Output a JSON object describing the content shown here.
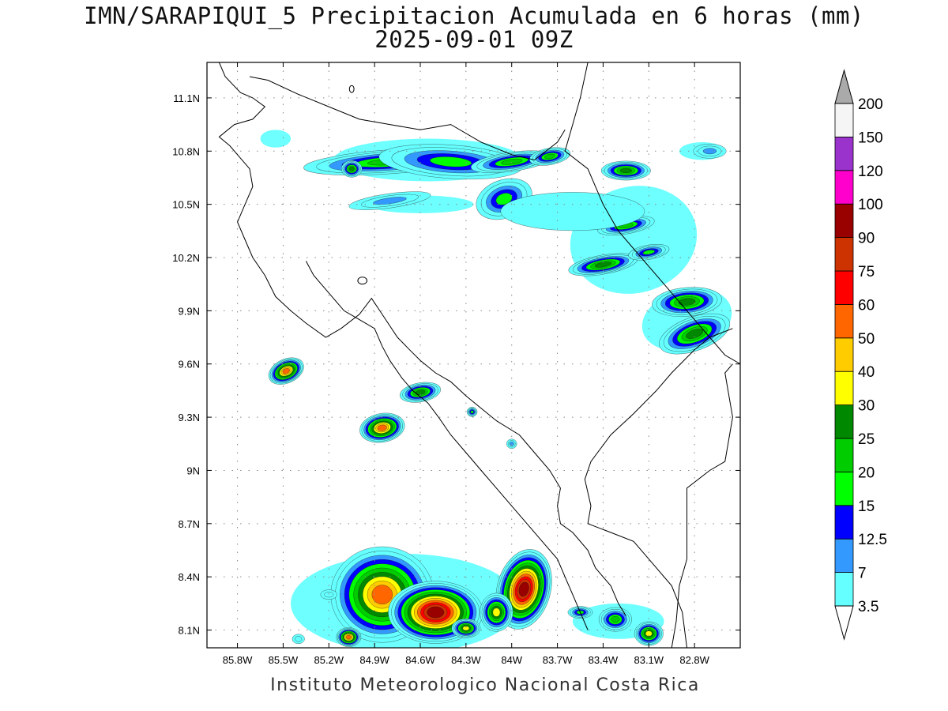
{
  "title": "IMN/SARAPIQUI_5 Precipitacion Acumulada en 6 horas (mm)",
  "subtitle": "2025-09-01 09Z",
  "footer": "Instituto Meteorologico Nacional Costa Rica",
  "map": {
    "lon_range": [
      -86.0,
      -82.5
    ],
    "lat_range": [
      8.0,
      11.3
    ],
    "lat_ticks": [
      {
        "value": 11.1,
        "label": "11.1N"
      },
      {
        "value": 10.8,
        "label": "10.8N"
      },
      {
        "value": 10.5,
        "label": "10.5N"
      },
      {
        "value": 10.2,
        "label": "10.2N"
      },
      {
        "value": 9.9,
        "label": "9.9N"
      },
      {
        "value": 9.6,
        "label": "9.6N"
      },
      {
        "value": 9.3,
        "label": "9.3N"
      },
      {
        "value": 9.0,
        "label": "9N"
      },
      {
        "value": 8.7,
        "label": "8.7N"
      },
      {
        "value": 8.4,
        "label": "8.4N"
      },
      {
        "value": 8.1,
        "label": "8.1N"
      }
    ],
    "lon_ticks": [
      {
        "value": -85.8,
        "label": "85.8W"
      },
      {
        "value": -85.5,
        "label": "85.5W"
      },
      {
        "value": -85.2,
        "label": "85.2W"
      },
      {
        "value": -84.9,
        "label": "84.9W"
      },
      {
        "value": -84.6,
        "label": "84.6W"
      },
      {
        "value": -84.3,
        "label": "84.3W"
      },
      {
        "value": -84.0,
        "label": "84W"
      },
      {
        "value": -83.7,
        "label": "83.7W"
      },
      {
        "value": -83.4,
        "label": "83.4W"
      },
      {
        "value": -83.1,
        "label": "83.1W"
      },
      {
        "value": -82.8,
        "label": "82.8W"
      }
    ]
  },
  "colorbar": {
    "labels": [
      "3.5",
      "7",
      "12.5",
      "15",
      "20",
      "25",
      "30",
      "40",
      "50",
      "60",
      "75",
      "90",
      "100",
      "120",
      "150",
      "200"
    ],
    "colors": [
      "#ffffff",
      "#66ffff",
      "#3399ff",
      "#0000ff",
      "#00ff00",
      "#00cc00",
      "#008800",
      "#ffff00",
      "#ffcc00",
      "#ff6600",
      "#ff0000",
      "#cc3300",
      "#990000",
      "#ff00cc",
      "#9933cc",
      "#f5f5f5"
    ],
    "under_color": "#ffffff",
    "over_color": "#aaaaaa"
  },
  "precip_cells": [
    {
      "lon": -84.8,
      "lat": 10.74,
      "rx": 0.42,
      "ry": 0.05,
      "rot": -4,
      "max": 26
    },
    {
      "lon": -84.4,
      "lat": 10.74,
      "rx": 0.35,
      "ry": 0.07,
      "rot": 4,
      "max": 24
    },
    {
      "lon": -84.0,
      "lat": 10.74,
      "rx": 0.2,
      "ry": 0.04,
      "rot": -8,
      "max": 26
    },
    {
      "lon": -83.75,
      "lat": 10.77,
      "rx": 0.1,
      "ry": 0.035,
      "rot": -10,
      "max": 25
    },
    {
      "lon": -85.05,
      "lat": 10.7,
      "rx": 0.05,
      "ry": 0.035,
      "rot": 0,
      "max": 32
    },
    {
      "lon": -84.05,
      "lat": 10.53,
      "rx": 0.14,
      "ry": 0.08,
      "rot": -20,
      "max": 22
    },
    {
      "lon": -84.8,
      "lat": 10.52,
      "rx": 0.2,
      "ry": 0.03,
      "rot": -8,
      "max": 14
    },
    {
      "lon": -83.25,
      "lat": 10.69,
      "rx": 0.12,
      "ry": 0.04,
      "rot": 0,
      "max": 32
    },
    {
      "lon": -83.25,
      "lat": 10.38,
      "rx": 0.14,
      "ry": 0.035,
      "rot": -10,
      "max": 25
    },
    {
      "lon": -83.6,
      "lat": 10.46,
      "rx": 0.35,
      "ry": 0.08,
      "rot": 0,
      "max": 6
    },
    {
      "lon": -82.7,
      "lat": 10.8,
      "rx": 0.08,
      "ry": 0.03,
      "rot": 0,
      "max": 14
    },
    {
      "lon": -83.4,
      "lat": 10.16,
      "rx": 0.17,
      "ry": 0.04,
      "rot": -10,
      "max": 32
    },
    {
      "lon": -83.1,
      "lat": 10.23,
      "rx": 0.1,
      "ry": 0.03,
      "rot": -10,
      "max": 22
    },
    {
      "lon": -82.85,
      "lat": 9.95,
      "rx": 0.17,
      "ry": 0.06,
      "rot": -5,
      "max": 36
    },
    {
      "lon": -82.8,
      "lat": 9.77,
      "rx": 0.18,
      "ry": 0.07,
      "rot": -20,
      "max": 33
    },
    {
      "lon": -85.48,
      "lat": 9.56,
      "rx": 0.09,
      "ry": 0.05,
      "rot": -25,
      "max": 62
    },
    {
      "lon": -84.85,
      "lat": 9.24,
      "rx": 0.11,
      "ry": 0.06,
      "rot": -10,
      "max": 63
    },
    {
      "lon": -84.6,
      "lat": 9.44,
      "rx": 0.1,
      "ry": 0.04,
      "rot": -10,
      "max": 32
    },
    {
      "lon": -84.26,
      "lat": 9.33,
      "rx": 0.025,
      "ry": 0.02,
      "rot": 0,
      "max": 22
    },
    {
      "lon": -84.0,
      "lat": 9.15,
      "rx": 0.025,
      "ry": 0.02,
      "rot": 0,
      "max": 14
    },
    {
      "lon": -84.85,
      "lat": 8.3,
      "rx": 0.25,
      "ry": 0.2,
      "rot": 0,
      "max": 70
    },
    {
      "lon": -84.5,
      "lat": 8.2,
      "rx": 0.23,
      "ry": 0.13,
      "rot": 0,
      "max": 100
    },
    {
      "lon": -85.07,
      "lat": 8.06,
      "rx": 0.06,
      "ry": 0.04,
      "rot": 0,
      "max": 62
    },
    {
      "lon": -84.3,
      "lat": 8.11,
      "rx": 0.07,
      "ry": 0.04,
      "rot": 0,
      "max": 42
    },
    {
      "lon": -83.92,
      "lat": 8.33,
      "rx": 0.13,
      "ry": 0.17,
      "rot": 15,
      "max": 100
    },
    {
      "lon": -84.1,
      "lat": 8.2,
      "rx": 0.08,
      "ry": 0.08,
      "rot": 0,
      "max": 45
    },
    {
      "lon": -83.32,
      "lat": 8.16,
      "rx": 0.08,
      "ry": 0.05,
      "rot": 0,
      "max": 25
    },
    {
      "lon": -83.1,
      "lat": 8.08,
      "rx": 0.07,
      "ry": 0.05,
      "rot": 0,
      "max": 45
    },
    {
      "lon": -83.55,
      "lat": 8.2,
      "rx": 0.06,
      "ry": 0.025,
      "rot": 0,
      "max": 22
    },
    {
      "lon": -85.4,
      "lat": 8.05,
      "rx": 0.03,
      "ry": 0.02,
      "rot": 0,
      "max": 10
    },
    {
      "lon": -85.2,
      "lat": 8.3,
      "rx": 0.04,
      "ry": 0.02,
      "rot": 0,
      "max": 12
    }
  ],
  "light_areas": [
    {
      "lon": -84.55,
      "lat": 10.75,
      "rx": 0.62,
      "ry": 0.12,
      "rot": 0
    },
    {
      "lon": -83.2,
      "lat": 10.3,
      "rx": 0.42,
      "ry": 0.3,
      "rot": -15
    },
    {
      "lon": -82.85,
      "lat": 9.85,
      "rx": 0.3,
      "ry": 0.17,
      "rot": -15
    },
    {
      "lon": -84.6,
      "lat": 10.5,
      "rx": 0.35,
      "ry": 0.05,
      "rot": 0
    },
    {
      "lon": -84.7,
      "lat": 8.25,
      "rx": 0.75,
      "ry": 0.28,
      "rot": 0
    },
    {
      "lon": -83.3,
      "lat": 8.15,
      "rx": 0.3,
      "ry": 0.1,
      "rot": 0
    },
    {
      "lon": -85.55,
      "lat": 10.87,
      "rx": 0.1,
      "ry": 0.05,
      "rot": 0
    },
    {
      "lon": -82.75,
      "lat": 10.8,
      "rx": 0.15,
      "ry": 0.05,
      "rot": 0
    }
  ],
  "coastlines": [
    [
      [
        -85.92,
        11.3
      ],
      [
        -85.88,
        11.22
      ],
      [
        -85.78,
        11.13
      ],
      [
        -85.7,
        11.1
      ],
      [
        -85.62,
        11.05
      ],
      [
        -85.7,
        10.98
      ],
      [
        -85.82,
        10.95
      ],
      [
        -85.92,
        10.88
      ],
      [
        -85.85,
        10.83
      ],
      [
        -85.8,
        10.78
      ],
      [
        -85.72,
        10.7
      ],
      [
        -85.7,
        10.6
      ],
      [
        -85.75,
        10.5
      ],
      [
        -85.8,
        10.4
      ],
      [
        -85.75,
        10.3
      ],
      [
        -85.7,
        10.2
      ],
      [
        -85.62,
        10.1
      ],
      [
        -85.55,
        9.98
      ],
      [
        -85.45,
        9.9
      ],
      [
        -85.35,
        9.83
      ],
      [
        -85.22,
        9.75
      ],
      [
        -85.12,
        9.8
      ],
      [
        -85.0,
        9.88
      ],
      [
        -84.92,
        9.97
      ],
      [
        -84.85,
        9.88
      ],
      [
        -84.75,
        9.75
      ],
      [
        -84.67,
        9.68
      ],
      [
        -84.6,
        9.62
      ],
      [
        -84.5,
        9.55
      ],
      [
        -84.4,
        9.5
      ],
      [
        -84.3,
        9.42
      ],
      [
        -84.2,
        9.35
      ],
      [
        -84.1,
        9.28
      ],
      [
        -83.95,
        9.2
      ],
      [
        -83.85,
        9.1
      ],
      [
        -83.75,
        9.0
      ],
      [
        -83.68,
        8.9
      ],
      [
        -83.7,
        8.8
      ],
      [
        -83.68,
        8.7
      ],
      [
        -83.6,
        8.65
      ],
      [
        -83.5,
        8.55
      ],
      [
        -83.45,
        8.45
      ],
      [
        -83.4,
        8.4
      ],
      [
        -83.35,
        8.35
      ],
      [
        -83.3,
        8.25
      ],
      [
        -83.25,
        8.18
      ]
    ],
    [
      [
        -82.85,
        8.0
      ],
      [
        -82.88,
        8.2
      ],
      [
        -82.95,
        8.35
      ],
      [
        -83.1,
        8.5
      ],
      [
        -83.2,
        8.6
      ],
      [
        -83.35,
        8.65
      ],
      [
        -83.5,
        8.7
      ],
      [
        -83.48,
        8.8
      ],
      [
        -83.52,
        8.95
      ],
      [
        -83.48,
        9.05
      ],
      [
        -83.35,
        9.2
      ],
      [
        -83.2,
        9.32
      ],
      [
        -83.05,
        9.45
      ],
      [
        -82.95,
        9.55
      ],
      [
        -82.8,
        9.68
      ],
      [
        -82.7,
        9.75
      ],
      [
        -82.55,
        9.8
      ]
    ],
    [
      [
        -85.35,
        10.18
      ],
      [
        -85.3,
        10.1
      ],
      [
        -85.2,
        10.0
      ],
      [
        -85.1,
        9.9
      ],
      [
        -85.0,
        9.85
      ],
      [
        -84.9,
        9.8
      ],
      [
        -84.85,
        9.7
      ],
      [
        -84.8,
        9.62
      ],
      [
        -84.72,
        9.52
      ],
      [
        -84.65,
        9.45
      ],
      [
        -84.55,
        9.38
      ],
      [
        -84.48,
        9.3
      ],
      [
        -84.4,
        9.2
      ],
      [
        -84.3,
        9.1
      ],
      [
        -84.2,
        9.0
      ],
      [
        -84.1,
        8.9
      ],
      [
        -84.0,
        8.8
      ],
      [
        -83.9,
        8.7
      ],
      [
        -83.8,
        8.6
      ],
      [
        -83.7,
        8.5
      ],
      [
        -83.65,
        8.4
      ],
      [
        -83.6,
        8.3
      ],
      [
        -83.55,
        8.2
      ],
      [
        -83.5,
        8.1
      ]
    ],
    [
      [
        -83.5,
        11.3
      ],
      [
        -83.55,
        11.1
      ],
      [
        -83.6,
        10.95
      ],
      [
        -83.65,
        10.8
      ],
      [
        -83.5,
        10.7
      ],
      [
        -83.4,
        10.5
      ],
      [
        -83.3,
        10.35
      ],
      [
        -83.15,
        10.2
      ],
      [
        -83.0,
        10.05
      ],
      [
        -82.85,
        9.9
      ],
      [
        -82.7,
        9.75
      ],
      [
        -82.6,
        9.65
      ],
      [
        -82.5,
        9.6
      ]
    ]
  ],
  "borders": [
    [
      [
        -85.72,
        11.22
      ],
      [
        -85.6,
        11.2
      ],
      [
        -85.4,
        11.12
      ],
      [
        -85.2,
        11.05
      ],
      [
        -85.0,
        10.98
      ],
      [
        -84.8,
        10.95
      ],
      [
        -84.6,
        10.92
      ],
      [
        -84.4,
        10.95
      ],
      [
        -84.2,
        10.85
      ],
      [
        -84.0,
        10.78
      ],
      [
        -83.85,
        10.75
      ],
      [
        -83.7,
        10.85
      ],
      [
        -83.65,
        10.92
      ]
    ],
    [
      [
        -82.95,
        8.0
      ],
      [
        -82.92,
        8.15
      ],
      [
        -82.9,
        8.35
      ],
      [
        -82.85,
        8.5
      ],
      [
        -82.85,
        8.9
      ],
      [
        -82.7,
        9.0
      ],
      [
        -82.6,
        9.05
      ],
      [
        -82.55,
        9.3
      ],
      [
        -82.6,
        9.55
      ],
      [
        -82.55,
        9.6
      ]
    ]
  ],
  "lakes": [
    {
      "lon": -84.98,
      "lat": 10.07,
      "rx": 0.03,
      "ry": 0.02
    },
    {
      "lon": -85.05,
      "lat": 11.15,
      "rx": 0.015,
      "ry": 0.02
    }
  ]
}
